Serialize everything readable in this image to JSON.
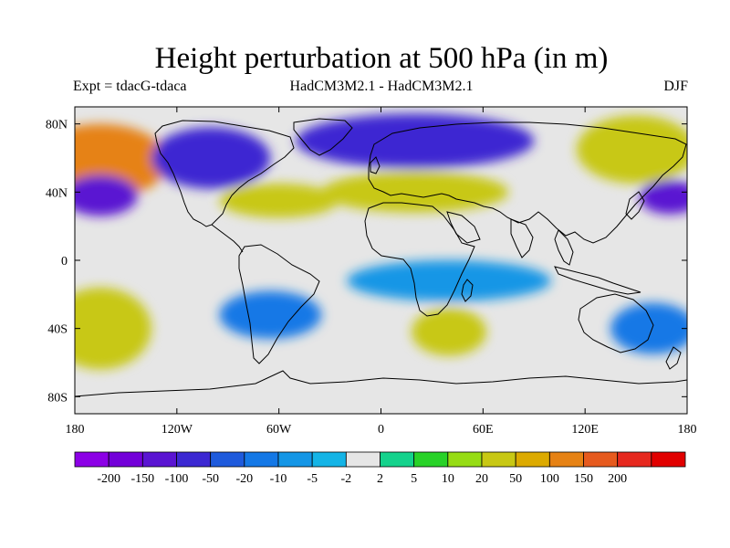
{
  "title": "Height perturbation at 500 hPa (in m)",
  "subtitle_left": "Expt = tdacG-tdaca",
  "subtitle_center": "HadCM3M2.1 - HadCM3M2.1",
  "subtitle_right": "DJF",
  "map": {
    "projection": "cylindrical-equidistant",
    "lon_range": [
      -180,
      180
    ],
    "lat_range": [
      -90,
      90
    ],
    "lat_ticks": [
      {
        "value": 80,
        "label": "80N"
      },
      {
        "value": 40,
        "label": "40N"
      },
      {
        "value": 0,
        "label": "0"
      },
      {
        "value": -40,
        "label": "40S"
      },
      {
        "value": -80,
        "label": "80S"
      }
    ],
    "lon_ticks": [
      {
        "value": -180,
        "label": "180"
      },
      {
        "value": -120,
        "label": "120W"
      },
      {
        "value": -60,
        "label": "60W"
      },
      {
        "value": 0,
        "label": "0"
      },
      {
        "value": 60,
        "label": "60E"
      },
      {
        "value": 120,
        "label": "120E"
      },
      {
        "value": 180,
        "label": "180"
      }
    ],
    "background_class": 8,
    "anomalies": [
      {
        "lon": -165,
        "lat": 58,
        "rx": 40,
        "ry": 22,
        "class": 14
      },
      {
        "lon": -165,
        "lat": 38,
        "rx": 22,
        "ry": 12,
        "class": 2
      },
      {
        "lon": -165,
        "lat": -40,
        "rx": 30,
        "ry": 24,
        "class": 12
      },
      {
        "lon": -100,
        "lat": 60,
        "rx": 35,
        "ry": 18,
        "class": 3
      },
      {
        "lon": -60,
        "lat": 35,
        "rx": 35,
        "ry": 10,
        "class": 12
      },
      {
        "lon": -65,
        "lat": -32,
        "rx": 30,
        "ry": 14,
        "class": 5
      },
      {
        "lon": 20,
        "lat": 70,
        "rx": 70,
        "ry": 16,
        "class": 3
      },
      {
        "lon": 20,
        "lat": 40,
        "rx": 55,
        "ry": 12,
        "class": 12
      },
      {
        "lon": 40,
        "lat": -42,
        "rx": 22,
        "ry": 14,
        "class": 12
      },
      {
        "lon": 40,
        "lat": -12,
        "rx": 60,
        "ry": 12,
        "class": 6
      },
      {
        "lon": 150,
        "lat": 65,
        "rx": 35,
        "ry": 20,
        "class": 12
      },
      {
        "lon": 170,
        "lat": 37,
        "rx": 18,
        "ry": 10,
        "class": 2
      },
      {
        "lon": 160,
        "lat": -40,
        "rx": 25,
        "ry": 15,
        "class": 5
      }
    ]
  },
  "colorbar": {
    "colors": [
      "#8c00e6",
      "#7300d9",
      "#5a14d2",
      "#3c28d2",
      "#1e5adc",
      "#1478e6",
      "#1496e6",
      "#14b4e6",
      "#e6e6e6",
      "#14d28c",
      "#28d228",
      "#96dc14",
      "#c8c814",
      "#dcaa00",
      "#e68214",
      "#e65a1e",
      "#e6281e",
      "#e10000"
    ],
    "labels": [
      "-200",
      "-150",
      "-100",
      "-50",
      "-20",
      "-10",
      "-5",
      "-2",
      "2",
      "5",
      "10",
      "20",
      "50",
      "100",
      "150",
      "200"
    ]
  }
}
